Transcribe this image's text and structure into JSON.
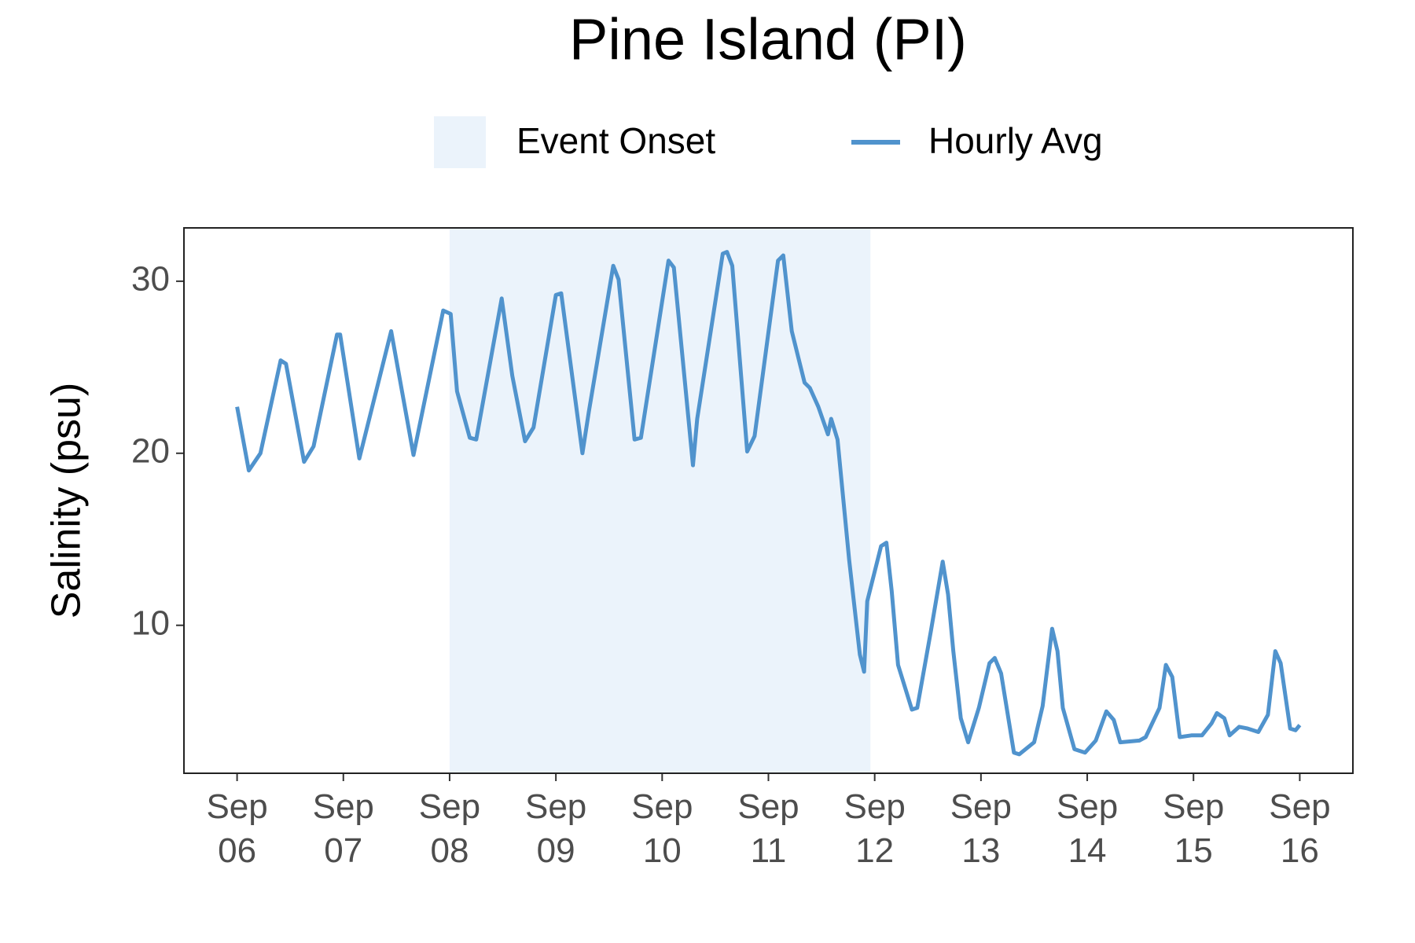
{
  "chart_data": {
    "type": "line",
    "title": "Pine Island (PI)",
    "y_label": "Salinity (psu)",
    "shade": {
      "name": "Event Onset",
      "color": "#ebf3fb",
      "range": [
        8,
        11.96
      ]
    },
    "x": [
      6.0,
      6.11,
      6.22,
      6.41,
      6.46,
      6.63,
      6.72,
      6.94,
      6.97,
      7.15,
      7.45,
      7.66,
      7.94,
      8.01,
      8.07,
      8.19,
      8.25,
      8.49,
      8.59,
      8.71,
      8.79,
      9.0,
      9.05,
      9.25,
      9.31,
      9.54,
      9.59,
      9.74,
      9.8,
      10.06,
      10.11,
      10.29,
      10.33,
      10.57,
      10.61,
      10.66,
      10.8,
      10.87,
      11.09,
      11.14,
      11.22,
      11.34,
      11.39,
      11.47,
      11.56,
      11.59,
      11.65,
      11.76,
      11.86,
      11.9,
      11.93,
      12.06,
      12.11,
      12.16,
      12.22,
      12.35,
      12.4,
      12.53,
      12.64,
      12.69,
      12.74,
      12.81,
      12.88,
      12.98,
      13.08,
      13.13,
      13.19,
      13.31,
      13.36,
      13.5,
      13.58,
      13.67,
      13.72,
      13.77,
      13.88,
      13.98,
      14.08,
      14.18,
      14.25,
      14.31,
      14.49,
      14.55,
      14.68,
      14.74,
      14.8,
      14.87,
      14.98,
      15.08,
      15.17,
      15.22,
      15.29,
      15.34,
      15.43,
      15.51,
      15.61,
      15.7,
      15.77,
      15.82,
      15.91,
      15.96,
      16.0
    ],
    "series": [
      {
        "name": "Hourly Avg",
        "color": "#5093cd",
        "values": [
          22.7,
          19.0,
          20.0,
          25.4,
          25.2,
          19.5,
          20.4,
          26.9,
          26.9,
          19.7,
          27.1,
          19.9,
          28.3,
          28.1,
          23.6,
          20.9,
          20.8,
          29.0,
          24.5,
          20.7,
          21.5,
          29.2,
          29.3,
          20.0,
          22.4,
          30.9,
          30.1,
          20.8,
          20.9,
          31.2,
          30.8,
          19.3,
          22.0,
          31.6,
          31.7,
          30.9,
          20.1,
          21.0,
          31.2,
          31.5,
          27.1,
          24.1,
          23.8,
          22.7,
          21.1,
          22.0,
          20.8,
          13.8,
          8.3,
          7.3,
          11.4,
          14.6,
          14.8,
          12.0,
          7.7,
          5.1,
          5.2,
          9.7,
          13.7,
          11.8,
          8.5,
          4.6,
          3.2,
          5.2,
          7.8,
          8.1,
          7.2,
          2.6,
          2.5,
          3.2,
          5.3,
          9.8,
          8.5,
          5.2,
          2.8,
          2.6,
          3.3,
          5.0,
          4.5,
          3.2,
          3.3,
          3.5,
          5.2,
          7.7,
          7.0,
          3.5,
          3.6,
          3.6,
          4.3,
          4.9,
          4.6,
          3.6,
          4.1,
          4.0,
          3.8,
          4.8,
          8.5,
          7.8,
          4.0,
          3.9,
          4.2
        ]
      }
    ],
    "xlim": [
      5.5,
      16.5
    ],
    "ylim": [
      1.4,
      33.1
    ],
    "xticks": [
      {
        "value": 6,
        "label": "Sep 06"
      },
      {
        "value": 7,
        "label": "Sep 07"
      },
      {
        "value": 8,
        "label": "Sep 08"
      },
      {
        "value": 9,
        "label": "Sep 09"
      },
      {
        "value": 10,
        "label": "Sep 10"
      },
      {
        "value": 11,
        "label": "Sep 11"
      },
      {
        "value": 12,
        "label": "Sep 12"
      },
      {
        "value": 13,
        "label": "Sep 13"
      },
      {
        "value": 14,
        "label": "Sep 14"
      },
      {
        "value": 15,
        "label": "Sep 15"
      },
      {
        "value": 16,
        "label": "Sep 16"
      }
    ],
    "yticks": [
      10,
      20,
      30
    ],
    "grid": false,
    "legend": "top"
  }
}
